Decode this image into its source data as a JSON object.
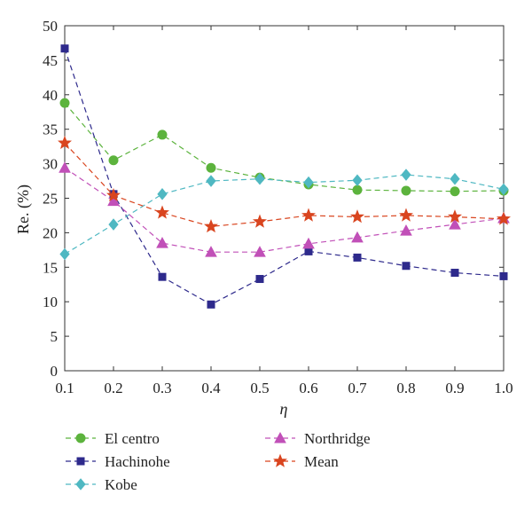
{
  "chart_data": {
    "type": "line",
    "xlabel": "η",
    "ylabel": "Re. (%)",
    "xlim": [
      0.1,
      1.0
    ],
    "ylim": [
      0,
      50
    ],
    "xticks": [
      "0.1",
      "0.2",
      "0.3",
      "0.4",
      "0.5",
      "0.6",
      "0.7",
      "0.8",
      "0.9",
      "1.0"
    ],
    "yticks": [
      "0",
      "5",
      "10",
      "15",
      "20",
      "25",
      "30",
      "35",
      "40",
      "45",
      "50"
    ],
    "x": [
      0.1,
      0.2,
      0.3,
      0.4,
      0.5,
      0.6,
      0.7,
      0.8,
      0.9,
      1.0
    ],
    "grid": false,
    "legend_position": "bottom",
    "series": [
      {
        "name": "El centro",
        "color": "#5cb33d",
        "marker": "circle",
        "values": [
          38.8,
          30.5,
          34.2,
          29.4,
          28.0,
          27.0,
          26.2,
          26.1,
          26.0,
          26.1
        ]
      },
      {
        "name": "Hachinohe",
        "color": "#2e2a8c",
        "marker": "square",
        "values": [
          46.7,
          25.6,
          13.6,
          9.6,
          13.3,
          17.3,
          16.4,
          15.2,
          14.2,
          13.7
        ]
      },
      {
        "name": "Kobe",
        "color": "#4fb8c2",
        "marker": "diamond",
        "values": [
          16.9,
          21.2,
          25.6,
          27.5,
          27.8,
          27.3,
          27.6,
          28.4,
          27.8,
          26.3
        ]
      },
      {
        "name": "Northridge",
        "color": "#c150b8",
        "marker": "triangle",
        "values": [
          29.4,
          24.6,
          18.5,
          17.2,
          17.2,
          18.4,
          19.3,
          20.3,
          21.2,
          22.1
        ]
      },
      {
        "name": "Mean",
        "color": "#d9451f",
        "marker": "star",
        "values": [
          33.0,
          25.4,
          22.9,
          20.9,
          21.6,
          22.5,
          22.3,
          22.5,
          22.3,
          22.0
        ]
      }
    ]
  }
}
